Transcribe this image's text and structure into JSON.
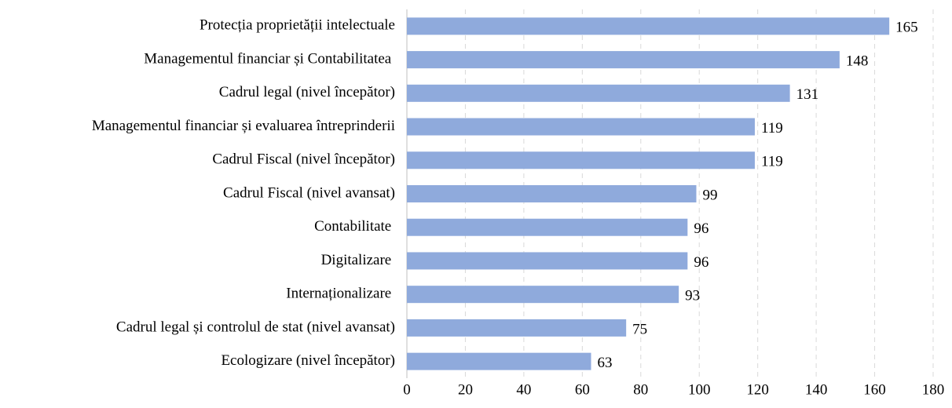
{
  "chart_data": {
    "type": "hbar",
    "categories": [
      "Protecția proprietății intelectuale",
      "Managementul financiar și Contabilitatea ",
      "Cadrul legal (nivel începător)",
      "Managementul financiar și evaluarea întreprinderii",
      "Cadrul Fiscal (nivel începător)",
      "Cadrul Fiscal (nivel avansat)",
      "Contabilitate ",
      "Digitalizare ",
      "Internaționalizare ",
      "Cadrul legal și controlul de stat (nivel avansat)",
      "Ecologizare (nivel începător)"
    ],
    "values": [
      165,
      148,
      131,
      119,
      119,
      99,
      96,
      96,
      93,
      75,
      63
    ],
    "color": "#8faadc",
    "xlim": [
      0,
      180
    ],
    "xticks": [
      0,
      20,
      40,
      60,
      80,
      100,
      120,
      140,
      160,
      180
    ],
    "grid": true
  }
}
